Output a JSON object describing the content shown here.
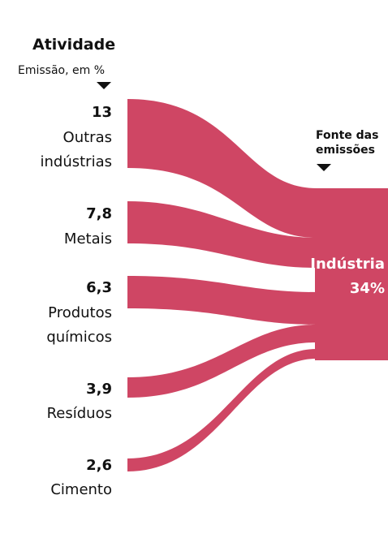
{
  "header": {
    "title": "Atividade",
    "subtitle": "Emissão, em %"
  },
  "target": {
    "caption_line1": "Fonte das",
    "caption_line2": "emissões",
    "name": "Indústria",
    "value": "34%"
  },
  "sources": [
    {
      "value": "13",
      "label_line1": "Outras",
      "label_line2": "indústrias"
    },
    {
      "value": "7,8",
      "label_line1": "Metais",
      "label_line2": ""
    },
    {
      "value": "6,3",
      "label_line1": "Produtos",
      "label_line2": "químicos"
    },
    {
      "value": "3,9",
      "label_line1": "Resíduos",
      "label_line2": ""
    },
    {
      "value": "2,6",
      "label_line1": "Cimento",
      "label_line2": ""
    }
  ],
  "colors": {
    "flow": "#cf4664",
    "text": "#111111",
    "target_text": "#ffffff"
  }
}
